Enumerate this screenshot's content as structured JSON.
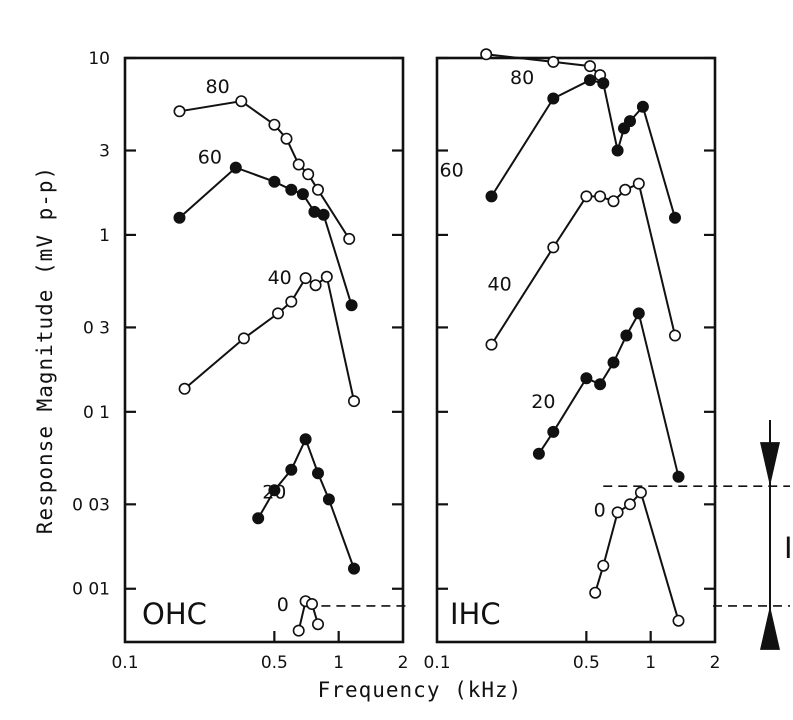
{
  "chart_data": {
    "type": "line",
    "xlabel": "Frequency (kHz)",
    "ylabel": "Response Magnitude (mV p-p)",
    "xscale": "log",
    "yscale": "log",
    "xlim": [
      0.1,
      2
    ],
    "ylim": [
      0.005,
      10
    ],
    "x_tick_labels": [
      "0.1",
      "0.5",
      "1",
      "2"
    ],
    "x_tick_values": [
      0.1,
      0.5,
      1,
      2
    ],
    "y_tick_labels": [
      "10",
      "3",
      "1",
      "0 3",
      "0 1",
      "0 03",
      "0 01"
    ],
    "y_tick_values": [
      10,
      3,
      1,
      0.3,
      0.1,
      0.03,
      0.01
    ],
    "annotation": {
      "label": "I",
      "from_level": 0.038,
      "to_level": 0.008
    },
    "panels": [
      {
        "name": "OHC",
        "series": [
          {
            "name": "80",
            "marker": "open",
            "x": [
              0.18,
              0.35,
              0.5,
              0.57,
              0.65,
              0.72,
              0.8,
              1.12
            ],
            "y": [
              5.0,
              5.7,
              4.2,
              3.5,
              2.5,
              2.2,
              1.8,
              0.95
            ]
          },
          {
            "name": "60",
            "marker": "filled",
            "x": [
              0.18,
              0.33,
              0.5,
              0.6,
              0.68,
              0.77,
              0.85,
              1.15
            ],
            "y": [
              1.25,
              2.4,
              2.0,
              1.8,
              1.7,
              1.35,
              1.3,
              0.4
            ]
          },
          {
            "name": "40",
            "marker": "open",
            "x": [
              0.19,
              0.36,
              0.52,
              0.6,
              0.7,
              0.78,
              0.88,
              1.18
            ],
            "y": [
              0.135,
              0.26,
              0.36,
              0.42,
              0.57,
              0.52,
              0.58,
              0.115
            ]
          },
          {
            "name": "20",
            "marker": "filled",
            "x": [
              0.42,
              0.5,
              0.6,
              0.7,
              0.8,
              0.9,
              1.18
            ],
            "y": [
              0.025,
              0.036,
              0.047,
              0.07,
              0.045,
              0.032,
              0.013
            ]
          },
          {
            "name": "0",
            "marker": "open",
            "x": [
              0.65,
              0.7,
              0.75,
              0.8
            ],
            "y": [
              0.0058,
              0.0085,
              0.0082,
              0.0063
            ]
          }
        ]
      },
      {
        "name": "IHC",
        "series": [
          {
            "name": "80",
            "marker": "open",
            "x": [
              0.17,
              0.35,
              0.52,
              0.58
            ],
            "y": [
              10.5,
              9.5,
              9.0,
              8.0
            ]
          },
          {
            "name": "60",
            "marker": "filled",
            "x": [
              0.18,
              0.35,
              0.52,
              0.6,
              0.7,
              0.75,
              0.8,
              0.92,
              1.3
            ],
            "y": [
              1.65,
              5.9,
              7.5,
              7.2,
              3.0,
              4.0,
              4.4,
              5.3,
              1.25
            ]
          },
          {
            "name": "40",
            "marker": "open",
            "x": [
              0.18,
              0.35,
              0.5,
              0.58,
              0.67,
              0.76,
              0.88,
              1.3
            ],
            "y": [
              0.24,
              0.85,
              1.65,
              1.65,
              1.55,
              1.8,
              1.95,
              0.27
            ]
          },
          {
            "name": "20",
            "marker": "filled",
            "x": [
              0.3,
              0.35,
              0.5,
              0.58,
              0.67,
              0.77,
              0.88,
              1.35
            ],
            "y": [
              0.058,
              0.077,
              0.155,
              0.143,
              0.19,
              0.27,
              0.36,
              0.043
            ]
          },
          {
            "name": "0",
            "marker": "open",
            "x": [
              0.55,
              0.6,
              0.7,
              0.8,
              0.9,
              1.35
            ],
            "y": [
              0.0095,
              0.0135,
              0.027,
              0.03,
              0.035,
              0.0066
            ]
          }
        ]
      }
    ]
  }
}
